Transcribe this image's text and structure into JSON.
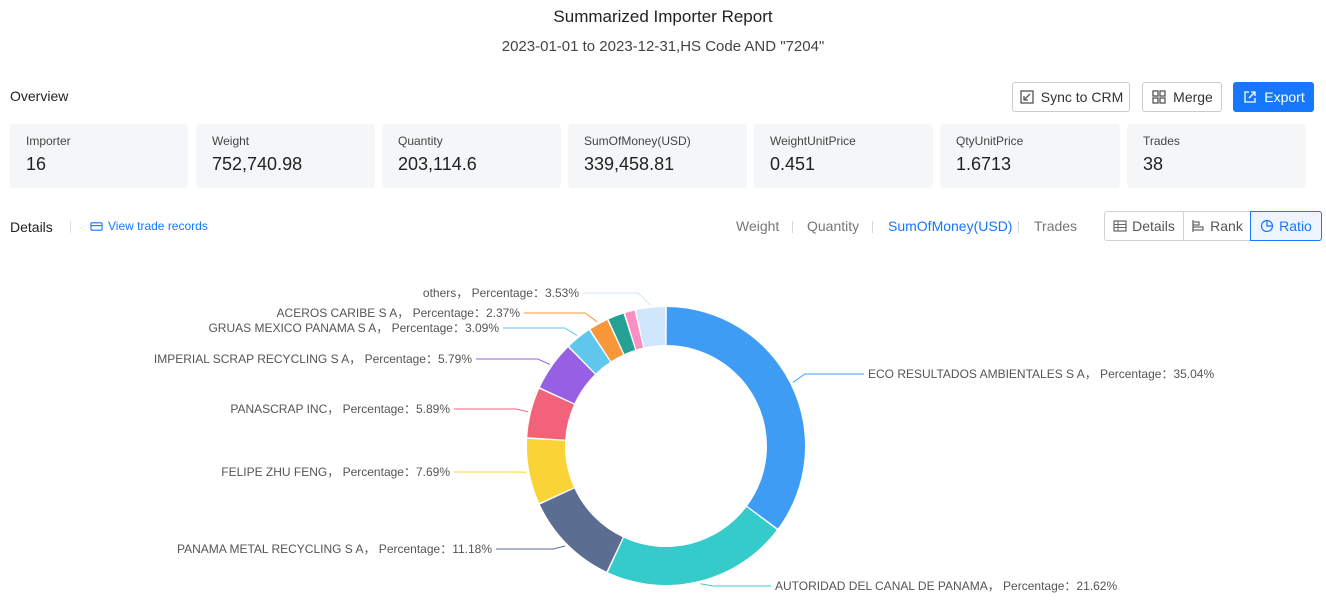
{
  "header": {
    "title": "Summarized Importer Report",
    "subtitle": "2023-01-01 to 2023-12-31,HS Code AND \"7204\""
  },
  "overview": {
    "label": "Overview",
    "buttons": {
      "sync": "Sync to CRM",
      "merge": "Merge",
      "export": "Export"
    },
    "cards": [
      {
        "label": "Importer",
        "value": "16"
      },
      {
        "label": "Weight",
        "value": "752,740.98"
      },
      {
        "label": "Quantity",
        "value": "203,114.6"
      },
      {
        "label": "SumOfMoney(USD)",
        "value": "339,458.81"
      },
      {
        "label": "WeightUnitPrice",
        "value": "0.451"
      },
      {
        "label": "QtyUnitPrice",
        "value": "1.6713"
      },
      {
        "label": "Trades",
        "value": "38"
      }
    ]
  },
  "details": {
    "label": "Details",
    "view_records": "View trade records",
    "metric_tabs": [
      "Weight",
      "Quantity",
      "SumOfMoney(USD)",
      "Trades"
    ],
    "active_metric": "SumOfMoney(USD)",
    "view_modes": [
      "Details",
      "Rank",
      "Ratio"
    ],
    "active_view": "Ratio"
  },
  "chart_data": {
    "type": "pie",
    "style": "donut",
    "label_template": "{name}，  Percentage：{percent}%",
    "slices": [
      {
        "name": "ECO RESULTADOS AMBIENTALES S A",
        "percent": 35.04,
        "color": "#3f9cf5"
      },
      {
        "name": "AUTORIDAD DEL CANAL DE PANAMA",
        "percent": 21.62,
        "color": "#36cbcb"
      },
      {
        "name": "PANAMA METAL RECYCLING S A",
        "percent": 11.18,
        "color": "#5b6e91"
      },
      {
        "name": "FELIPE ZHU FENG",
        "percent": 7.69,
        "color": "#fad337"
      },
      {
        "name": "PANASCRAP INC",
        "percent": 5.89,
        "color": "#f2637b"
      },
      {
        "name": "IMPERIAL SCRAP RECYCLING S A",
        "percent": 5.79,
        "color": "#975fe4"
      },
      {
        "name": "GRUAS MEXICO PANAMA S A",
        "percent": 3.09,
        "color": "#5fc6ec"
      },
      {
        "name": "ACEROS CARIBE S A",
        "percent": 2.37,
        "color": "#f8973a"
      },
      {
        "name": "",
        "percent": 2.0,
        "color": "#26a095"
      },
      {
        "name": "",
        "percent": 1.3,
        "color": "#fb8fc4"
      },
      {
        "name": "others",
        "percent": 3.53,
        "color": "#cfe6fc"
      }
    ]
  }
}
